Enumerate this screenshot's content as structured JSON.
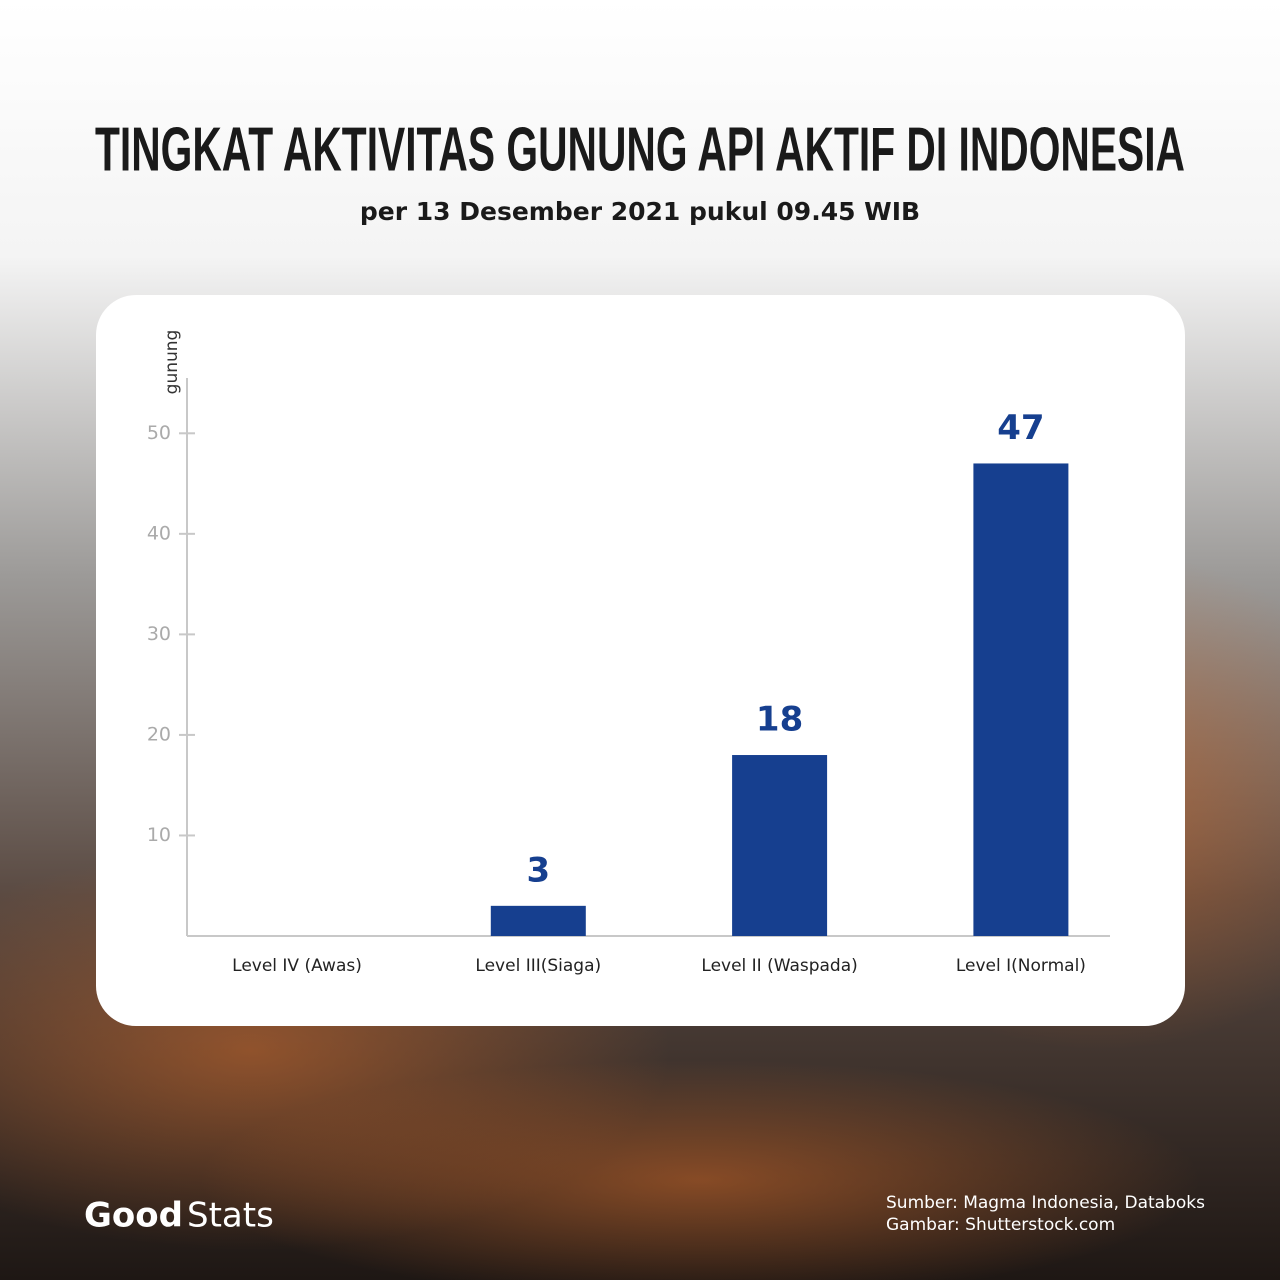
{
  "chart_data": {
    "type": "bar",
    "title": "TINGKAT AKTIVITAS GUNUNG API AKTIF DI INDONESIA",
    "subtitle": "per 13 Desember 2021 pukul 09.45 WIB",
    "y_label": "gunung",
    "categories": [
      "Level IV (Awas)",
      "Level III(Siaga)",
      "Level II (Waspada)",
      "Level I(Normal)"
    ],
    "values": [
      null,
      3,
      18,
      47
    ],
    "color": "#163f8f",
    "ylim": [
      0,
      55.5
    ],
    "yticks": [
      10,
      20,
      30,
      40,
      50
    ]
  },
  "footer": {
    "brand_bold": "Good",
    "brand_light": "Stats",
    "source": "Sumber: Magma Indonesia, Databoks",
    "image_credit": "Gambar: Shutterstock.com"
  }
}
